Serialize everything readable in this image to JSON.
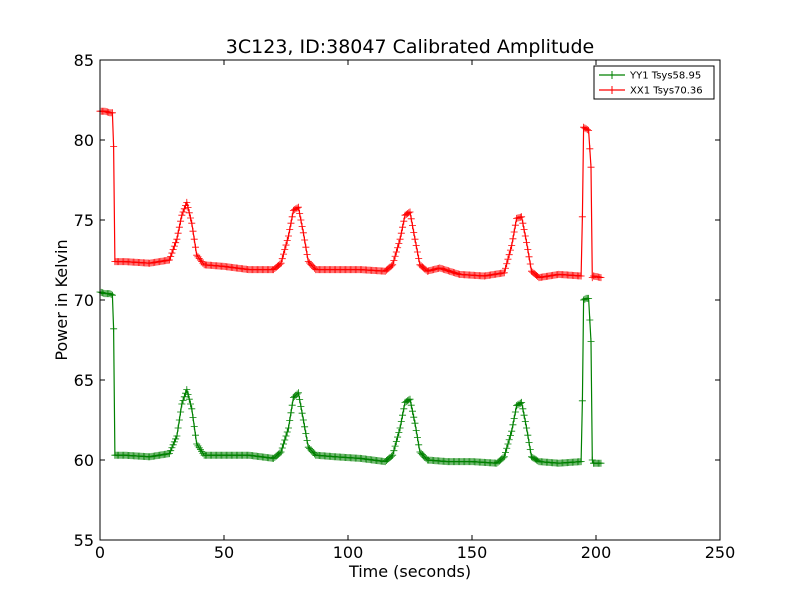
{
  "chart_data": {
    "type": "line",
    "title": "3C123, ID:38047 Calibrated Amplitude",
    "xlabel": "Time (seconds)",
    "ylabel": "Power in Kelvin",
    "xlim": [
      0,
      250
    ],
    "ylim": [
      55,
      85
    ],
    "x_ticks": [
      0,
      50,
      100,
      150,
      200,
      250
    ],
    "y_ticks": [
      55,
      60,
      65,
      70,
      75,
      80,
      85
    ],
    "x_tick_labels": [
      "0",
      "50",
      "100",
      "150",
      "200",
      "250"
    ],
    "y_tick_labels": [
      "55",
      "60",
      "65",
      "70",
      "75",
      "80",
      "85"
    ],
    "grid": false,
    "legend_position": "top-right",
    "marker": "+",
    "series": [
      {
        "name": "YY1 Tsys58.95",
        "color": "#008000",
        "x": [
          0,
          2,
          4,
          5,
          5.5,
          6,
          10,
          20,
          28,
          31,
          33,
          35,
          37,
          39,
          42,
          50,
          60,
          70,
          73,
          76,
          78,
          80,
          82,
          84,
          87,
          95,
          105,
          115,
          118,
          121,
          123,
          125,
          127,
          129,
          132,
          140,
          150,
          160,
          163,
          166,
          168,
          170,
          172,
          174,
          177,
          185,
          194,
          194.5,
          195,
          196,
          197,
          198,
          198.5,
          199,
          202
        ],
        "y": [
          70.5,
          70.4,
          70.4,
          70.3,
          68.2,
          60.3,
          60.3,
          60.2,
          60.4,
          61.5,
          63.5,
          64.4,
          63.2,
          61,
          60.3,
          60.3,
          60.3,
          60.1,
          60.5,
          62,
          63.9,
          64.2,
          62.5,
          60.8,
          60.3,
          60.2,
          60.1,
          59.9,
          60.3,
          62,
          63.6,
          63.8,
          62.3,
          60.5,
          60,
          59.9,
          59.9,
          59.8,
          60.2,
          61.8,
          63.4,
          63.6,
          62,
          60.2,
          59.9,
          59.8,
          59.9,
          63.7,
          70,
          70.1,
          70.1,
          67.4,
          60,
          59.8,
          59.8
        ]
      },
      {
        "name": "XX1 Tsys70.36",
        "color": "#ff0000",
        "x": [
          0,
          2,
          4,
          5,
          5.5,
          6,
          10,
          20,
          28,
          31,
          33,
          35,
          37,
          39,
          42,
          50,
          60,
          70,
          73,
          76,
          78,
          80,
          82,
          84,
          87,
          95,
          105,
          115,
          118,
          121,
          123,
          125,
          127,
          129,
          132,
          137,
          145,
          155,
          163,
          166,
          168,
          170,
          172,
          174,
          177,
          185,
          194,
          194.5,
          195,
          196,
          197,
          198,
          198.5,
          199,
          202
        ],
        "y": [
          81.8,
          81.8,
          81.7,
          81.7,
          79.6,
          72.4,
          72.4,
          72.3,
          72.5,
          73.8,
          75.3,
          76.1,
          74.8,
          72.8,
          72.2,
          72.1,
          71.9,
          71.9,
          72.3,
          74,
          75.6,
          75.8,
          74.2,
          72.4,
          71.9,
          71.9,
          71.9,
          71.8,
          72.2,
          73.8,
          75.3,
          75.5,
          73.8,
          72.2,
          71.8,
          72,
          71.6,
          71.5,
          71.7,
          73.4,
          75.1,
          75.2,
          73.6,
          71.8,
          71.4,
          71.6,
          71.5,
          75.2,
          80.8,
          80.7,
          80.6,
          78.3,
          71.4,
          71.5,
          71.4
        ]
      }
    ]
  }
}
